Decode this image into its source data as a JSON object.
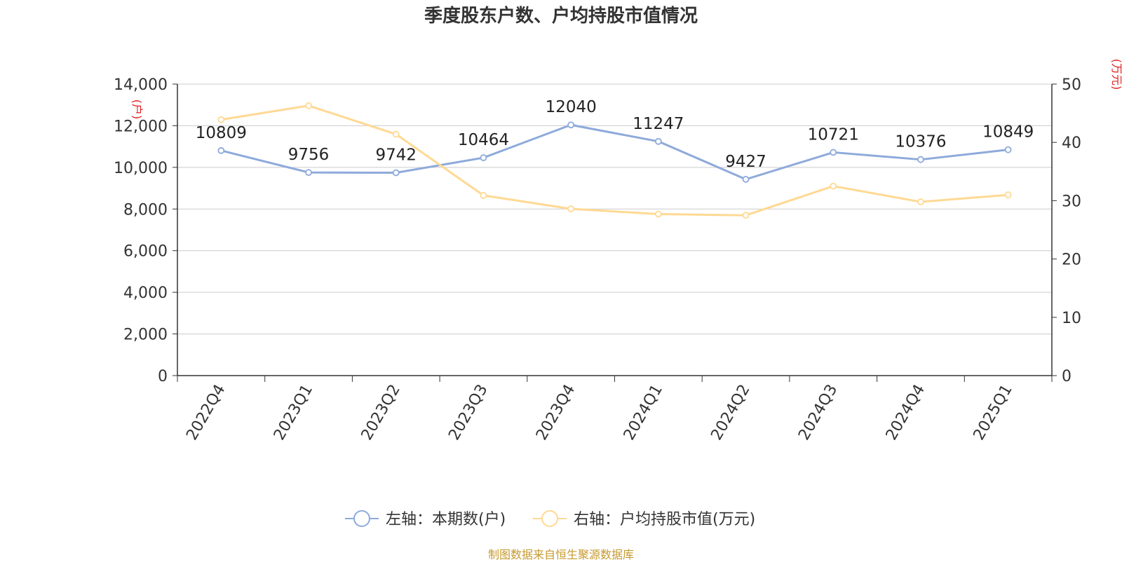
{
  "chart_data": {
    "type": "line",
    "title": "季度股东户数、户均持股市值情况",
    "categories": [
      "2022Q4",
      "2023Q1",
      "2023Q2",
      "2023Q3",
      "2023Q4",
      "2024Q1",
      "2024Q2",
      "2024Q3",
      "2024Q4",
      "2025Q1"
    ],
    "series": [
      {
        "name": "左轴：本期数(户)",
        "axis": "left",
        "color": "#8eaadb",
        "values": [
          10809,
          9756,
          9742,
          10464,
          12040,
          11247,
          9427,
          10721,
          10376,
          10849
        ],
        "labels": [
          "10809",
          "9756",
          "9742",
          "10464",
          "12040",
          "11247",
          "9427",
          "10721",
          "10376",
          "10849"
        ]
      },
      {
        "name": "右轴：户均持股市值(万元)",
        "axis": "right",
        "color": "#ffd993",
        "values": [
          43.9,
          46.3,
          41.4,
          30.9,
          28.6,
          27.7,
          27.5,
          32.5,
          29.8,
          31.0
        ]
      }
    ],
    "y_left": {
      "label": "(户)",
      "range": [
        0,
        14000
      ],
      "ticks": [
        "0",
        "2,000",
        "4,000",
        "6,000",
        "8,000",
        "10,000",
        "12,000",
        "14,000"
      ]
    },
    "y_right": {
      "label": "(万元)",
      "range": [
        0,
        50
      ],
      "ticks": [
        "0",
        "10",
        "20",
        "30",
        "40",
        "50"
      ]
    },
    "grid": true,
    "legend_position": "bottom"
  },
  "source_note": "制图数据来自恒生聚源数据库"
}
